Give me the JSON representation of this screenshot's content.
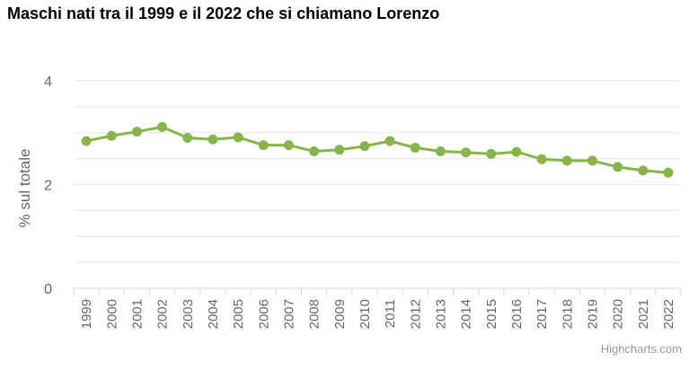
{
  "title": "Maschi nati tra il 1999 e il 2022 che si chiamano Lorenzo",
  "credits": "Highcharts.com",
  "chart_data": {
    "type": "line",
    "title": "Maschi nati tra il 1999 e il 2022 che si chiamano Lorenzo",
    "xlabel": "",
    "ylabel": "% sul totale",
    "ylim": [
      0,
      4
    ],
    "y_ticks": [
      0,
      2,
      4
    ],
    "grid": true,
    "legend": "none",
    "color": "#86b54a",
    "categories": [
      "1999",
      "2000",
      "2001",
      "2002",
      "2003",
      "2004",
      "2005",
      "2006",
      "2007",
      "2008",
      "2009",
      "2010",
      "2011",
      "2012",
      "2013",
      "2014",
      "2015",
      "2016",
      "2017",
      "2018",
      "2019",
      "2020",
      "2021",
      "2022"
    ],
    "values": [
      2.84,
      2.94,
      3.02,
      3.11,
      2.9,
      2.87,
      2.91,
      2.76,
      2.76,
      2.64,
      2.67,
      2.74,
      2.84,
      2.71,
      2.64,
      2.62,
      2.59,
      2.63,
      2.49,
      2.46,
      2.46,
      2.34,
      2.27,
      2.23
    ]
  }
}
